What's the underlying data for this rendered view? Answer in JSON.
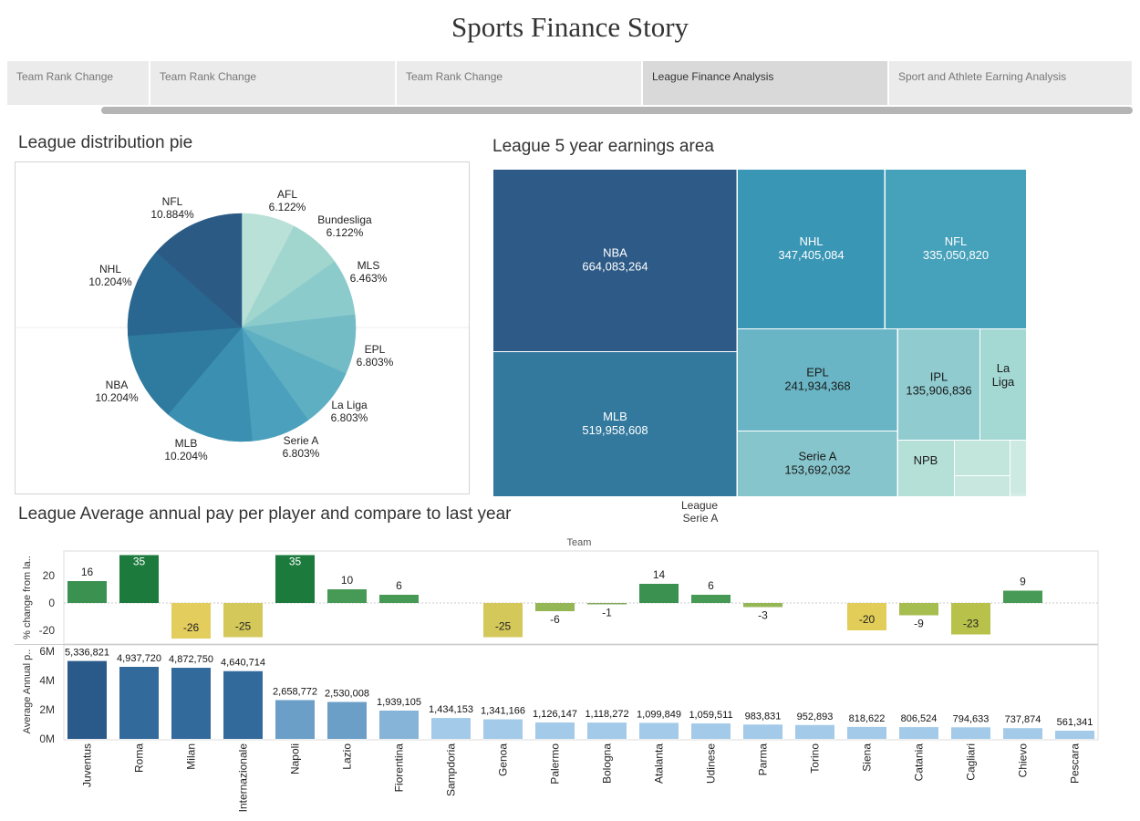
{
  "story": {
    "title": "Sports Finance Story"
  },
  "nav": {
    "tabs": [
      {
        "label": "Team Rank Change",
        "active": false
      },
      {
        "label": "Team Rank Change",
        "active": false
      },
      {
        "label": "Team Rank Change",
        "active": false
      },
      {
        "label": "League Finance Analysis",
        "active": true
      },
      {
        "label": "Sport and Athlete Earning Analysis",
        "active": false
      }
    ]
  },
  "sections": {
    "pie_title": "League distribution pie",
    "treemap_title": "League 5 year earnings area",
    "bar_title": "League Average annual pay per player and compare to last year"
  },
  "tooltip": {
    "label": "League",
    "value": "Serie A"
  },
  "chart_data": [
    {
      "type": "pie",
      "title": "League distribution pie",
      "slices": [
        {
          "label": "AFL",
          "value": 6.122,
          "display": "6.122%",
          "color": "#b9e1d7"
        },
        {
          "label": "Bundesliga",
          "value": 6.122,
          "display": "6.122%",
          "color": "#a1d6cf"
        },
        {
          "label": "MLS",
          "value": 6.463,
          "display": "6.463%",
          "color": "#8ccbcc"
        },
        {
          "label": "EPL",
          "value": 6.803,
          "display": "6.803%",
          "color": "#73bcc6"
        },
        {
          "label": "La Liga",
          "value": 6.803,
          "display": "6.803%",
          "color": "#5eafc2"
        },
        {
          "label": "Serie A",
          "value": 6.803,
          "display": "6.803%",
          "color": "#4ba0bd"
        },
        {
          "label": "MLB",
          "value": 10.204,
          "display": "10.204%",
          "color": "#3b8fb0"
        },
        {
          "label": "NBA",
          "value": 10.204,
          "display": "10.204%",
          "color": "#2f7b9f"
        },
        {
          "label": "NHL",
          "value": 10.204,
          "display": "10.204%",
          "color": "#2a6790"
        },
        {
          "label": "NFL",
          "value": 10.884,
          "display": "10.884%",
          "color": "#2b5b85"
        }
      ]
    },
    {
      "type": "treemap",
      "title": "League 5 year earnings area",
      "items": [
        {
          "label": "NBA",
          "value": 664083264,
          "display": "664,083,264",
          "color": "#2d5a86"
        },
        {
          "label": "MLB",
          "value": 519958608,
          "display": "519,958,608",
          "color": "#33799e"
        },
        {
          "label": "NHL",
          "value": 347405084,
          "display": "347,405,084",
          "color": "#3996b5"
        },
        {
          "label": "NFL",
          "value": 335050820,
          "display": "335,050,820",
          "color": "#46a1ba"
        },
        {
          "label": "EPL",
          "value": 241934368,
          "display": "241,934,368",
          "color": "#69b5c5"
        },
        {
          "label": "Serie A",
          "value": 153692032,
          "display": "153,692,032",
          "color": "#86c5cc"
        },
        {
          "label": "IPL",
          "value": 135906836,
          "display": "135,906,836",
          "color": "#8fcbcf"
        },
        {
          "label": "La Liga",
          "value": null,
          "display": "",
          "color": "#a4d8d2"
        },
        {
          "label": "NPB",
          "value": null,
          "display": "",
          "color": "#b5e0d8"
        }
      ]
    },
    {
      "type": "bar",
      "title": "League Average annual pay per player and compare to last year",
      "xlabel": "Team",
      "categories": [
        "Juventus",
        "Roma",
        "Milan",
        "Internazionale",
        "Napoli",
        "Lazio",
        "Fiorentina",
        "Sampdoria",
        "Genoa",
        "Palermo",
        "Bologna",
        "Atalanta",
        "Udinese",
        "Parma",
        "Torino",
        "Siena",
        "Catania",
        "Cagliari",
        "Chievo",
        "Pescara"
      ],
      "series": [
        {
          "ylabel": "% change from la..",
          "ylim": [
            -30,
            40
          ],
          "yticks": [
            -20,
            0,
            20
          ],
          "values": [
            16,
            35,
            -26,
            -25,
            35,
            10,
            6,
            null,
            -25,
            -6,
            -1,
            14,
            6,
            -3,
            null,
            -20,
            -9,
            -23,
            9,
            null
          ]
        },
        {
          "ylabel": "Average Annual p..",
          "ylim": [
            0,
            6500000
          ],
          "yticks": [
            0,
            2000000,
            4000000,
            6000000
          ],
          "ytick_labels": [
            "0M",
            "2M",
            "4M",
            "6M"
          ],
          "values": [
            5336821,
            4937720,
            4872750,
            4640714,
            2658772,
            2530008,
            1939105,
            1434153,
            1341166,
            1126147,
            1118272,
            1099849,
            1059511,
            983831,
            952893,
            818622,
            806524,
            794633,
            737874,
            561341
          ],
          "labels": [
            "5,336,821",
            "4,937,720",
            "4,872,750",
            "4,640,714",
            "2,658,772",
            "2,530,008",
            "1,939,105",
            "1,434,153",
            "1,341,166",
            "1,126,147",
            "1,118,272",
            "1,099,849",
            "1,059,511",
            "983,831",
            "952,893",
            "818,622",
            "806,524",
            "794,633",
            "737,874",
            "561,341"
          ]
        }
      ]
    }
  ]
}
